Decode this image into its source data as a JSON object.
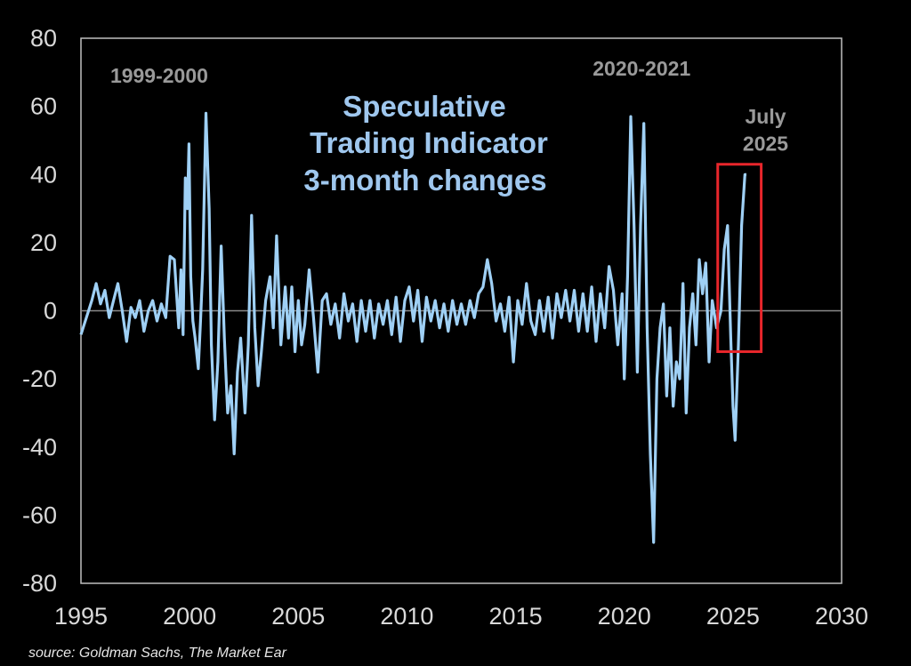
{
  "chart_data": {
    "type": "line",
    "title_lines": [
      "Speculative",
      "Trading Indicator",
      "3-month changes"
    ],
    "xlim": [
      1995,
      2030
    ],
    "ylim": [
      -80,
      80
    ],
    "x_ticks": [
      1995,
      2000,
      2005,
      2010,
      2015,
      2020,
      2025,
      2030
    ],
    "y_ticks": [
      80,
      60,
      40,
      20,
      0,
      -20,
      -40,
      -60,
      -80
    ],
    "grid": false,
    "colors": {
      "line": "#9fd0f5",
      "highlight_box": "#e8262b",
      "zero_line": "#8a8a8a",
      "frame": "#bfbfbf"
    },
    "annotations": [
      {
        "text": "1999-2000",
        "x": 1998.6,
        "y": 67
      },
      {
        "text": "2020-2021",
        "x": 2020.8,
        "y": 69
      },
      {
        "text": "July",
        "x": 2026.5,
        "y": 55
      },
      {
        "text": "2025",
        "x": 2026.5,
        "y": 47
      }
    ],
    "highlight_box": {
      "x0": 2024.3,
      "x1": 2026.3,
      "y0": -12,
      "y1": 43
    },
    "series": [
      {
        "points": [
          [
            1995.0,
            -7
          ],
          [
            1995.25,
            -2
          ],
          [
            1995.5,
            3
          ],
          [
            1995.7,
            8
          ],
          [
            1995.9,
            2
          ],
          [
            1996.1,
            6
          ],
          [
            1996.3,
            -2
          ],
          [
            1996.5,
            3
          ],
          [
            1996.7,
            8
          ],
          [
            1996.9,
            0
          ],
          [
            1997.1,
            -9
          ],
          [
            1997.3,
            1
          ],
          [
            1997.5,
            -2
          ],
          [
            1997.7,
            3
          ],
          [
            1997.9,
            -6
          ],
          [
            1998.1,
            0
          ],
          [
            1998.3,
            3
          ],
          [
            1998.5,
            -3
          ],
          [
            1998.7,
            2
          ],
          [
            1998.9,
            -2
          ],
          [
            1999.1,
            16
          ],
          [
            1999.3,
            15
          ],
          [
            1999.5,
            -5
          ],
          [
            1999.6,
            12
          ],
          [
            1999.7,
            -7
          ],
          [
            1999.8,
            39
          ],
          [
            1999.9,
            30
          ],
          [
            1999.97,
            49
          ],
          [
            2000.05,
            10
          ],
          [
            2000.15,
            -3
          ],
          [
            2000.25,
            -8
          ],
          [
            2000.4,
            -17
          ],
          [
            2000.5,
            -3
          ],
          [
            2000.6,
            12
          ],
          [
            2000.75,
            58
          ],
          [
            2000.9,
            30
          ],
          [
            2001.0,
            -10
          ],
          [
            2001.15,
            -32
          ],
          [
            2001.3,
            -15
          ],
          [
            2001.45,
            19
          ],
          [
            2001.6,
            -8
          ],
          [
            2001.75,
            -30
          ],
          [
            2001.9,
            -22
          ],
          [
            2002.05,
            -42
          ],
          [
            2002.2,
            -18
          ],
          [
            2002.35,
            -8
          ],
          [
            2002.55,
            -30
          ],
          [
            2002.7,
            -10
          ],
          [
            2002.85,
            28
          ],
          [
            2003.0,
            -5
          ],
          [
            2003.15,
            -22
          ],
          [
            2003.3,
            -12
          ],
          [
            2003.5,
            3
          ],
          [
            2003.7,
            10
          ],
          [
            2003.85,
            -5
          ],
          [
            2004.0,
            22
          ],
          [
            2004.2,
            -10
          ],
          [
            2004.4,
            7
          ],
          [
            2004.55,
            -8
          ],
          [
            2004.7,
            7
          ],
          [
            2004.85,
            -12
          ],
          [
            2005.0,
            3
          ],
          [
            2005.15,
            -10
          ],
          [
            2005.3,
            -4
          ],
          [
            2005.5,
            12
          ],
          [
            2005.7,
            -2
          ],
          [
            2005.9,
            -18
          ],
          [
            2006.1,
            3
          ],
          [
            2006.3,
            5
          ],
          [
            2006.5,
            -4
          ],
          [
            2006.7,
            2
          ],
          [
            2006.9,
            -8
          ],
          [
            2007.1,
            5
          ],
          [
            2007.3,
            -3
          ],
          [
            2007.5,
            2
          ],
          [
            2007.7,
            -9
          ],
          [
            2007.9,
            3
          ],
          [
            2008.1,
            -6
          ],
          [
            2008.3,
            3
          ],
          [
            2008.5,
            -8
          ],
          [
            2008.7,
            2
          ],
          [
            2008.9,
            -4
          ],
          [
            2009.1,
            3
          ],
          [
            2009.3,
            -7
          ],
          [
            2009.5,
            4
          ],
          [
            2009.7,
            -9
          ],
          [
            2009.9,
            3
          ],
          [
            2010.1,
            7
          ],
          [
            2010.3,
            -3
          ],
          [
            2010.5,
            6
          ],
          [
            2010.7,
            -9
          ],
          [
            2010.9,
            4
          ],
          [
            2011.1,
            -3
          ],
          [
            2011.3,
            3
          ],
          [
            2011.5,
            -5
          ],
          [
            2011.7,
            2
          ],
          [
            2011.9,
            -6
          ],
          [
            2012.1,
            3
          ],
          [
            2012.3,
            -4
          ],
          [
            2012.5,
            2
          ],
          [
            2012.7,
            -4
          ],
          [
            2012.9,
            3
          ],
          [
            2013.1,
            -2
          ],
          [
            2013.3,
            5
          ],
          [
            2013.5,
            7
          ],
          [
            2013.7,
            15
          ],
          [
            2013.9,
            8
          ],
          [
            2014.1,
            -3
          ],
          [
            2014.3,
            2
          ],
          [
            2014.5,
            -6
          ],
          [
            2014.7,
            4
          ],
          [
            2014.9,
            -15
          ],
          [
            2015.1,
            3
          ],
          [
            2015.3,
            -4
          ],
          [
            2015.5,
            8
          ],
          [
            2015.7,
            -3
          ],
          [
            2015.9,
            -7
          ],
          [
            2016.1,
            3
          ],
          [
            2016.3,
            -6
          ],
          [
            2016.5,
            4
          ],
          [
            2016.7,
            -8
          ],
          [
            2016.9,
            5
          ],
          [
            2017.1,
            -2
          ],
          [
            2017.3,
            6
          ],
          [
            2017.5,
            -3
          ],
          [
            2017.7,
            6
          ],
          [
            2017.9,
            -6
          ],
          [
            2018.1,
            5
          ],
          [
            2018.3,
            -6
          ],
          [
            2018.5,
            7
          ],
          [
            2018.7,
            -9
          ],
          [
            2018.9,
            5
          ],
          [
            2019.1,
            -5
          ],
          [
            2019.3,
            13
          ],
          [
            2019.5,
            6
          ],
          [
            2019.7,
            -10
          ],
          [
            2019.9,
            5
          ],
          [
            2020.0,
            -20
          ],
          [
            2020.15,
            10
          ],
          [
            2020.3,
            57
          ],
          [
            2020.45,
            25
          ],
          [
            2020.6,
            -18
          ],
          [
            2020.75,
            25
          ],
          [
            2020.9,
            55
          ],
          [
            2021.05,
            -5
          ],
          [
            2021.2,
            -42
          ],
          [
            2021.35,
            -68
          ],
          [
            2021.5,
            -20
          ],
          [
            2021.65,
            -5
          ],
          [
            2021.8,
            2
          ],
          [
            2021.95,
            -25
          ],
          [
            2022.1,
            -5
          ],
          [
            2022.25,
            -28
          ],
          [
            2022.4,
            -15
          ],
          [
            2022.55,
            -20
          ],
          [
            2022.7,
            8
          ],
          [
            2022.85,
            -30
          ],
          [
            2023.0,
            -5
          ],
          [
            2023.15,
            5
          ],
          [
            2023.3,
            -10
          ],
          [
            2023.45,
            15
          ],
          [
            2023.6,
            5
          ],
          [
            2023.75,
            14
          ],
          [
            2023.9,
            -15
          ],
          [
            2024.05,
            3
          ],
          [
            2024.25,
            -5
          ],
          [
            2024.45,
            0
          ],
          [
            2024.6,
            18
          ],
          [
            2024.75,
            25
          ],
          [
            2024.9,
            -8
          ],
          [
            2025.0,
            -28
          ],
          [
            2025.1,
            -38
          ],
          [
            2025.25,
            -10
          ],
          [
            2025.4,
            25
          ],
          [
            2025.55,
            40
          ],
          [
            2025.62,
            40
          ]
        ]
      }
    ]
  },
  "source": "source: Goldman Sachs, The Market Ear"
}
